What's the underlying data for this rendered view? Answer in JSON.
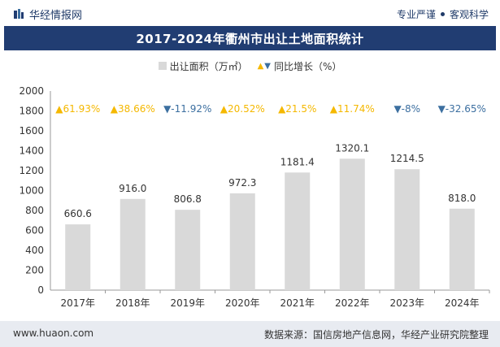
{
  "header": {
    "brand": "华经情报网",
    "tagline_left": "专业严谨",
    "tagline_right": "客观科学"
  },
  "chart_data": {
    "type": "bar",
    "title": "2017-2024年衢州市出让土地面积统计",
    "legend": {
      "bar_label": "出让面积（万㎡）",
      "growth_label": "同比增长（%）"
    },
    "categories": [
      "2017年",
      "2018年",
      "2019年",
      "2020年",
      "2021年",
      "2022年",
      "2023年",
      "2024年"
    ],
    "values": [
      660.6,
      916.0,
      806.8,
      972.3,
      1181.4,
      1320.1,
      1214.5,
      818.0
    ],
    "value_labels": [
      "660.6",
      "916.0",
      "806.8",
      "972.3",
      "1181.4",
      "1320.1",
      "1214.5",
      "818.0"
    ],
    "growth": [
      61.93,
      38.66,
      -11.92,
      20.52,
      21.5,
      11.74,
      -8,
      -32.65
    ],
    "growth_labels": [
      "61.93%",
      "38.66%",
      "-11.92%",
      "20.52%",
      "21.5%",
      "11.74%",
      "-8%",
      "-32.65%"
    ],
    "yticks": [
      0,
      200,
      400,
      600,
      800,
      1000,
      1200,
      1400,
      1600,
      1800,
      2000
    ],
    "ylim": [
      0,
      2000
    ],
    "colors": {
      "bar": "#d9d9d9",
      "up": "#f5b800",
      "down": "#3c6fa0",
      "axis": "#999999",
      "label": "#333333"
    }
  },
  "footer": {
    "url": "www.huaon.com",
    "source": "数据来源：国信房地产信息网，华经产业研究院整理"
  }
}
